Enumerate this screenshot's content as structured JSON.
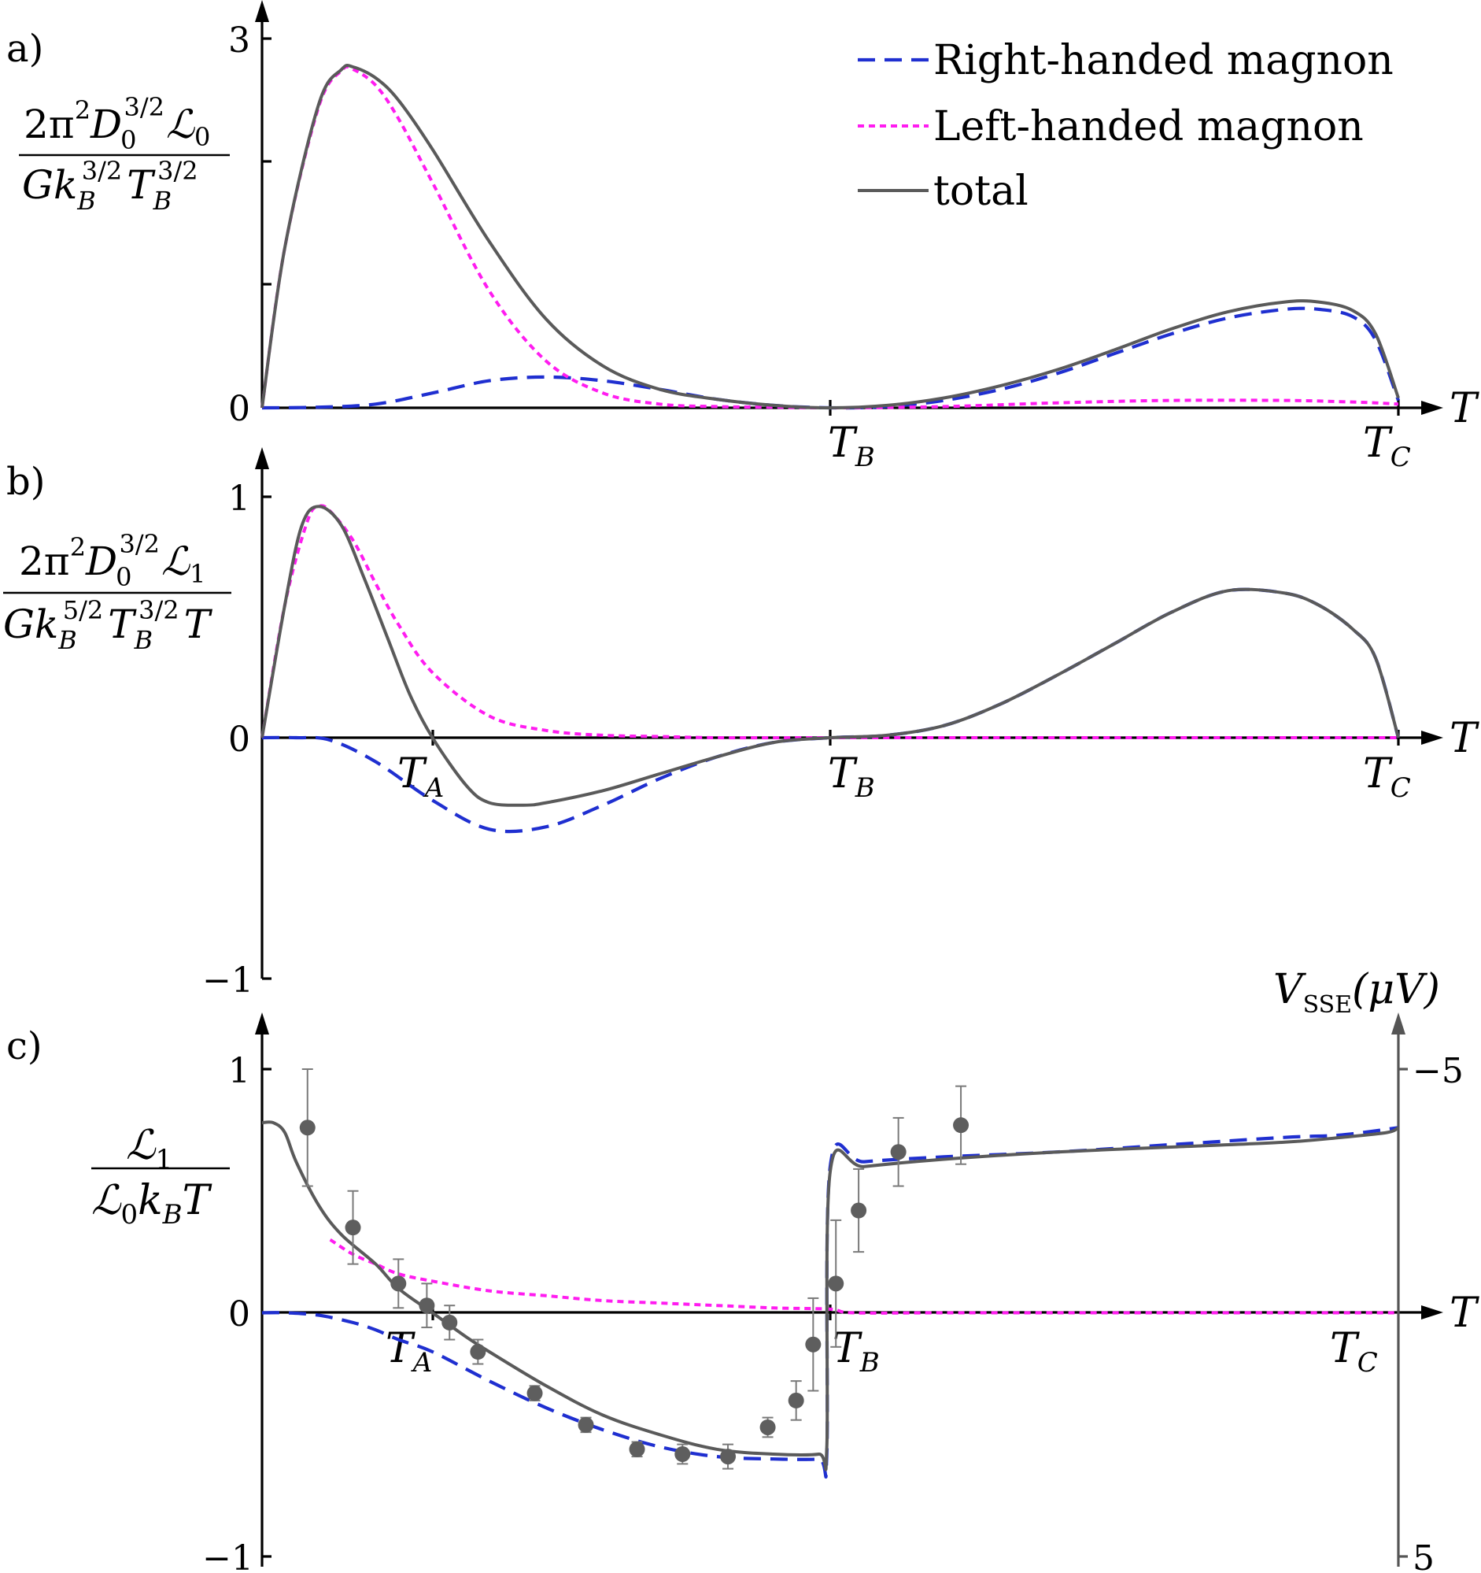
{
  "panels": {
    "a": {
      "label": "a)",
      "ylabel_parts": [
        "2π",
        "2",
        "D",
        "0",
        "3/2",
        "ℒ",
        "0",
        "Gk",
        "B",
        "3/2",
        "T",
        "B",
        "3/2"
      ],
      "yticks": [
        "3",
        "0"
      ],
      "xaxis_symbol": "T",
      "xmarks": [
        {
          "base": "T",
          "sub": "B"
        },
        {
          "base": "T",
          "sub": "C"
        }
      ]
    },
    "b": {
      "label": "b)",
      "ylabel_parts": [
        "2π",
        "2",
        "D",
        "0",
        "3/2",
        "ℒ",
        "1",
        "Gk",
        "B",
        "5/2",
        "T",
        "B",
        "3/2",
        "T"
      ],
      "yticks": [
        "1",
        "0",
        "−1"
      ],
      "xaxis_symbol": "T",
      "xmarks": [
        {
          "base": "T",
          "sub": "A"
        },
        {
          "base": "T",
          "sub": "B"
        },
        {
          "base": "T",
          "sub": "C"
        }
      ]
    },
    "c": {
      "label": "c)",
      "ylabel_parts": [
        "ℒ",
        "1",
        "ℒ",
        "0",
        "k",
        "B",
        "T"
      ],
      "yticks": [
        "1",
        "0",
        "−1"
      ],
      "xaxis_symbol": "T",
      "xmarks": [
        {
          "base": "T",
          "sub": "A"
        },
        {
          "base": "T",
          "sub": "B"
        },
        {
          "base": "T",
          "sub": "C"
        }
      ],
      "right_axis_label": {
        "base": "V",
        "sub": "SSE",
        "unit": "(μV)"
      },
      "right_yticks": [
        "−5",
        "5"
      ]
    }
  },
  "legend": [
    {
      "label": "Right-handed magnon",
      "style": "right"
    },
    {
      "label": "Left-handed magnon",
      "style": "left"
    },
    {
      "label": "total",
      "style": "total"
    }
  ],
  "chart_data": [
    {
      "type": "line",
      "panel": "a",
      "x_markers": {
        "T_B": 0.5,
        "T_C": 1.0
      },
      "xlim": [
        0,
        1.0
      ],
      "ylim": [
        0,
        3
      ],
      "series": [
        {
          "name": "Right-handed magnon",
          "color": "#1f2fd0",
          "x": [
            0,
            0.05,
            0.1,
            0.15,
            0.2,
            0.25,
            0.3,
            0.35,
            0.4,
            0.45,
            0.5,
            0.55,
            0.6,
            0.65,
            0.7,
            0.75,
            0.8,
            0.85,
            0.9,
            0.93,
            0.96,
            0.98,
            1.0
          ],
          "y": [
            0,
            0.005,
            0.03,
            0.12,
            0.22,
            0.25,
            0.22,
            0.15,
            0.07,
            0.02,
            0,
            0.01,
            0.06,
            0.15,
            0.28,
            0.44,
            0.6,
            0.73,
            0.8,
            0.8,
            0.74,
            0.55,
            0.06
          ]
        },
        {
          "name": "Left-handed magnon",
          "color": "#ff1cf0",
          "x": [
            0,
            0.02,
            0.05,
            0.07,
            0.08,
            0.1,
            0.12,
            0.15,
            0.2,
            0.25,
            0.3,
            0.35,
            0.4,
            0.45,
            0.5,
            0.6,
            0.7,
            0.8,
            0.9,
            0.95,
            0.98,
            1.0
          ],
          "y": [
            0,
            1.3,
            2.45,
            2.74,
            2.75,
            2.62,
            2.35,
            1.83,
            0.95,
            0.38,
            0.12,
            0.03,
            0.01,
            0.005,
            0,
            0.01,
            0.04,
            0.06,
            0.06,
            0.05,
            0.04,
            0.03
          ]
        },
        {
          "name": "total",
          "color": "#5a5a5a",
          "x": [
            0,
            0.02,
            0.05,
            0.07,
            0.08,
            0.1,
            0.12,
            0.15,
            0.2,
            0.25,
            0.3,
            0.35,
            0.4,
            0.45,
            0.5,
            0.55,
            0.6,
            0.65,
            0.7,
            0.75,
            0.8,
            0.85,
            0.9,
            0.93,
            0.96,
            0.98,
            1.0
          ],
          "y": [
            0,
            1.3,
            2.47,
            2.75,
            2.77,
            2.68,
            2.5,
            2.1,
            1.35,
            0.72,
            0.34,
            0.15,
            0.07,
            0.02,
            0,
            0.02,
            0.08,
            0.18,
            0.31,
            0.47,
            0.64,
            0.78,
            0.86,
            0.86,
            0.79,
            0.6,
            0.08
          ]
        }
      ]
    },
    {
      "type": "line",
      "panel": "b",
      "x_markers": {
        "T_A": 0.15,
        "T_B": 0.5,
        "T_C": 1.0
      },
      "xlim": [
        0,
        1.0
      ],
      "ylim": [
        -1,
        1
      ],
      "series": [
        {
          "name": "Right-handed magnon",
          "color": "#1f2fd0",
          "x": [
            0,
            0.03,
            0.06,
            0.1,
            0.15,
            0.2,
            0.25,
            0.3,
            0.35,
            0.4,
            0.45,
            0.5,
            0.55,
            0.6,
            0.65,
            0.7,
            0.75,
            0.8,
            0.85,
            0.9,
            0.93,
            0.96,
            0.98,
            1.0
          ],
          "y": [
            0,
            0,
            -0.01,
            -0.1,
            -0.26,
            -0.38,
            -0.37,
            -0.28,
            -0.17,
            -0.08,
            -0.02,
            0,
            0.01,
            0.05,
            0.14,
            0.26,
            0.39,
            0.52,
            0.61,
            0.6,
            0.55,
            0.45,
            0.33,
            0
          ]
        },
        {
          "name": "Left-handed magnon",
          "color": "#ff1cf0",
          "x": [
            0,
            0.02,
            0.04,
            0.05,
            0.06,
            0.08,
            0.1,
            0.12,
            0.15,
            0.2,
            0.25,
            0.3,
            0.35,
            0.4,
            0.5,
            0.6,
            0.7,
            0.8,
            0.9,
            1.0
          ],
          "y": [
            0,
            0.55,
            0.9,
            0.96,
            0.94,
            0.82,
            0.64,
            0.47,
            0.27,
            0.09,
            0.03,
            0.01,
            0.005,
            0,
            0,
            0,
            0,
            0,
            0,
            0
          ]
        },
        {
          "name": "total",
          "color": "#5a5a5a",
          "x": [
            0,
            0.02,
            0.035,
            0.05,
            0.07,
            0.09,
            0.11,
            0.13,
            0.15,
            0.18,
            0.2,
            0.23,
            0.25,
            0.3,
            0.35,
            0.4,
            0.45,
            0.5,
            0.55,
            0.6,
            0.65,
            0.7,
            0.75,
            0.8,
            0.85,
            0.9,
            0.93,
            0.96,
            0.98,
            1.0
          ],
          "y": [
            0,
            0.55,
            0.88,
            0.96,
            0.88,
            0.66,
            0.42,
            0.18,
            0,
            -0.2,
            -0.27,
            -0.28,
            -0.27,
            -0.22,
            -0.15,
            -0.08,
            -0.02,
            0,
            0.01,
            0.05,
            0.14,
            0.26,
            0.39,
            0.52,
            0.61,
            0.6,
            0.55,
            0.45,
            0.33,
            0
          ]
        }
      ]
    },
    {
      "type": "line",
      "panel": "c",
      "x_markers": {
        "T_A": 0.15,
        "T_B": 0.5,
        "T_C": 1.0
      },
      "xlim": [
        0,
        1.0
      ],
      "ylim": [
        -1,
        1
      ],
      "right_ylim": [
        5,
        -5
      ],
      "series": [
        {
          "name": "Right-handed magnon",
          "color": "#1f2fd0",
          "x": [
            0,
            0.02,
            0.05,
            0.08,
            0.1,
            0.12,
            0.15,
            0.2,
            0.25,
            0.3,
            0.35,
            0.4,
            0.45,
            0.49,
            0.497,
            0.5,
            0.53,
            0.6,
            0.7,
            0.8,
            0.9,
            0.95,
            1.0
          ],
          "y": [
            0,
            0,
            -0.01,
            -0.04,
            -0.07,
            -0.11,
            -0.16,
            -0.28,
            -0.39,
            -0.48,
            -0.55,
            -0.59,
            -0.6,
            -0.6,
            -0.58,
            0.6,
            0.62,
            0.64,
            0.66,
            0.69,
            0.72,
            0.73,
            0.76
          ]
        },
        {
          "name": "Left-handed magnon",
          "color": "#ff1cf0",
          "x": [
            0.06,
            0.08,
            0.1,
            0.12,
            0.15,
            0.2,
            0.25,
            0.3,
            0.35,
            0.4,
            0.45,
            0.5,
            0.52,
            0.6,
            0.7,
            0.8,
            0.9,
            1.0
          ],
          "y": [
            0.3,
            0.24,
            0.2,
            0.16,
            0.13,
            0.09,
            0.07,
            0.05,
            0.04,
            0.03,
            0.02,
            0.015,
            0,
            0,
            0,
            0,
            0,
            0
          ]
        },
        {
          "name": "total",
          "color": "#5a5a5a",
          "x": [
            0,
            0.01,
            0.02,
            0.03,
            0.05,
            0.07,
            0.1,
            0.12,
            0.15,
            0.18,
            0.2,
            0.25,
            0.3,
            0.35,
            0.4,
            0.45,
            0.49,
            0.497,
            0.5,
            0.53,
            0.6,
            0.7,
            0.8,
            0.9,
            0.95,
            0.99,
            1.0
          ],
          "y": [
            0.78,
            0.78,
            0.74,
            0.62,
            0.44,
            0.32,
            0.2,
            0.1,
            0.0,
            -0.1,
            -0.16,
            -0.3,
            -0.42,
            -0.5,
            -0.56,
            -0.58,
            -0.58,
            -0.55,
            0.58,
            0.6,
            0.63,
            0.66,
            0.68,
            0.7,
            0.72,
            0.74,
            0.76
          ]
        }
      ],
      "measured": {
        "x": [
          0.04,
          0.08,
          0.12,
          0.145,
          0.165,
          0.19,
          0.24,
          0.285,
          0.33,
          0.37,
          0.41,
          0.445,
          0.47,
          0.485,
          0.505,
          0.525,
          0.56,
          0.615
        ],
        "y": [
          0.76,
          0.35,
          0.12,
          0.03,
          -0.04,
          -0.16,
          -0.33,
          -0.46,
          -0.56,
          -0.58,
          -0.59,
          -0.47,
          -0.36,
          -0.13,
          0.12,
          0.42,
          0.66,
          0.77
        ],
        "err": [
          0.24,
          0.15,
          0.1,
          0.09,
          0.07,
          0.05,
          0.03,
          0.03,
          0.03,
          0.04,
          0.05,
          0.04,
          0.08,
          0.19,
          0.26,
          0.17,
          0.14,
          0.16
        ]
      }
    }
  ]
}
